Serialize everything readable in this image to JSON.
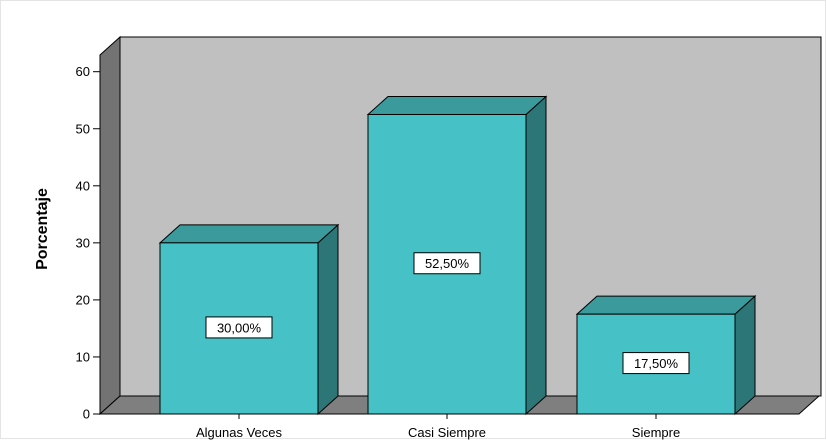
{
  "chart_data": {
    "type": "bar",
    "style": "3d",
    "categories": [
      "Algunas Veces",
      "Casi Siempre",
      "Siempre"
    ],
    "values": [
      30.0,
      52.5,
      17.5
    ],
    "data_labels": [
      "30,00%",
      "52,50%",
      "17,50%"
    ],
    "ylabel": "Porcentaje",
    "xlabel": "",
    "ylim": [
      0,
      60
    ],
    "yticks": [
      0,
      10,
      20,
      30,
      40,
      50,
      60
    ],
    "grid": false,
    "legend": "none",
    "colors": {
      "bar_front": "#46c2c6",
      "bar_side": "#2d7677",
      "bar_top": "#3a9a9c",
      "wall_back": "#c0c0c0",
      "wall_side": "#737373",
      "floor": "#7f7f7f"
    }
  }
}
